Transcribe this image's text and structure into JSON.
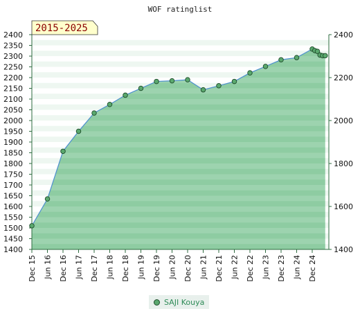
{
  "chart_data": {
    "type": "area",
    "title": "WOF ratinglist",
    "badge": "2015-2025",
    "x_labels": [
      "Dec 15",
      "Jun 16",
      "Dec 16",
      "Jun 17",
      "Dec 17",
      "Jun 18",
      "Dec 18",
      "Jun 19",
      "Dec 19",
      "Jun 20",
      "Dec 20",
      "Jun 21",
      "Dec 21",
      "Jun 22",
      "Dec 22",
      "Jun 23",
      "Dec 23",
      "Jun 24",
      "Dec 24"
    ],
    "y_left_ticks": [
      2400,
      2350,
      2300,
      2250,
      2200,
      2150,
      2100,
      2050,
      2000,
      1950,
      1900,
      1850,
      1800,
      1750,
      1700,
      1650,
      1600,
      1550,
      1500,
      1450,
      1400
    ],
    "y_right_ticks": [
      2400,
      2200,
      2000,
      1800,
      1600,
      1400
    ],
    "ylim": [
      1400,
      2400
    ],
    "series": [
      {
        "name": "SAJI Kouya",
        "x": [
          "Dec 15",
          "Jun 16",
          "Dec 16",
          "Jun 17",
          "Dec 17",
          "Jun 18",
          "Dec 18",
          "Jun 19",
          "Dec 19",
          "Jun 20",
          "Dec 20",
          "Jun 21",
          "Dec 21",
          "Jun 22",
          "Dec 22",
          "Jun 23",
          "Dec 23",
          "Jun 24",
          "Dec 24",
          "Jan 25",
          "Feb 25",
          "Mar 25",
          "Apr 25",
          "May 25"
        ],
        "values": [
          1510,
          1635,
          1857,
          1950,
          2035,
          2075,
          2118,
          2150,
          2182,
          2185,
          2190,
          2143,
          2162,
          2182,
          2222,
          2252,
          2283,
          2293,
          2333,
          2326,
          2322,
          2305,
          2302,
          2302
        ]
      }
    ],
    "colors": {
      "fill": "#7cc494",
      "band_light": "#cdebd7",
      "line": "#4d8fcf",
      "marker": "#5aa86e",
      "marker_edge": "#1e4d2b",
      "badge_bg": "#ffffcc"
    }
  }
}
